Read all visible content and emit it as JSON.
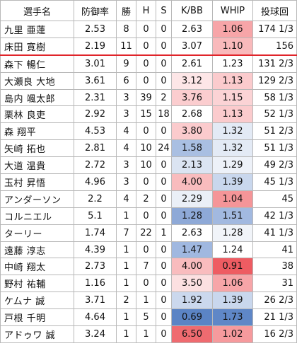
{
  "headers": [
    "選手名",
    "防御率",
    "勝",
    "H",
    "S",
    "K/BB",
    "WHIP",
    "投球回"
  ],
  "rows": [
    {
      "name": "九里 亜蓮",
      "era": "2.53",
      "w": "8",
      "h": "0",
      "s": "0",
      "kbb": "2.63",
      "whip": "1.06",
      "ip": "174 1/3",
      "kbb_bg": "#ffffff",
      "whip_bg": "#f7a5a8"
    },
    {
      "name": "床田 寛樹",
      "era": "2.19",
      "w": "11",
      "h": "0",
      "s": "0",
      "kbb": "3.07",
      "whip": "1.10",
      "ip": "156",
      "kbb_bg": "#ffffff",
      "whip_bg": "#f9b9bb"
    },
    {
      "name": "森下 暢仁",
      "era": "3.01",
      "w": "9",
      "h": "0",
      "s": "0",
      "kbb": "2.61",
      "whip": "1.23",
      "ip": "131 2/3",
      "kbb_bg": "#ffffff",
      "whip_bg": "#ffffff"
    },
    {
      "name": "大瀬良 大地",
      "era": "3.61",
      "h": "0",
      "w": "6",
      "s": "0",
      "kbb": "3.12",
      "whip": "1.13",
      "ip": "129 2/3",
      "kbb_bg": "#fde6e7",
      "whip_bg": "#fbcbcd"
    },
    {
      "name": "島内 颯太郎",
      "era": "2.31",
      "w": "3",
      "h": "39",
      "s": "2",
      "kbb": "3.76",
      "whip": "1.15",
      "ip": "58 1/3",
      "kbb_bg": "#fbcdcf",
      "whip_bg": "#fbd3d5"
    },
    {
      "name": "栗林 良吏",
      "era": "2.92",
      "w": "3",
      "h": "15",
      "s": "18",
      "kbb": "2.68",
      "whip": "1.13",
      "ip": "52 1/3",
      "kbb_bg": "#ffffff",
      "whip_bg": "#fbcbcd"
    },
    {
      "name": "森 翔平",
      "era": "4.53",
      "w": "4",
      "h": "0",
      "s": "0",
      "kbb": "3.80",
      "whip": "1.32",
      "ip": "51 2/3",
      "kbb_bg": "#fbcbcd",
      "whip_bg": "#e3eaf5"
    },
    {
      "name": "矢崎 拓也",
      "era": "2.81",
      "w": "4",
      "h": "10",
      "s": "24",
      "kbb": "1.58",
      "whip": "1.32",
      "ip": "51 1/3",
      "kbb_bg": "#a9bfe2",
      "whip_bg": "#e3eaf5"
    },
    {
      "name": "大道 温貴",
      "era": "2.72",
      "w": "3",
      "h": "10",
      "s": "0",
      "kbb": "2.13",
      "whip": "1.29",
      "ip": "49 2/3",
      "kbb_bg": "#dbe4f2",
      "whip_bg": "#edf1f8"
    },
    {
      "name": "玉村 昇悟",
      "era": "4.96",
      "w": "3",
      "h": "0",
      "s": "0",
      "kbb": "4.00",
      "whip": "1.39",
      "ip": "45 1/3",
      "kbb_bg": "#f9bcbe",
      "whip_bg": "#c9d7ed"
    },
    {
      "name": "アンダーソン",
      "era": "2.2",
      "w": "4",
      "h": "2",
      "s": "0",
      "kbb": "2.29",
      "whip": "1.04",
      "ip": "45",
      "kbb_bg": "#eaeff7",
      "whip_bg": "#f59598"
    },
    {
      "name": "コルニエル",
      "era": "5.1",
      "w": "1",
      "h": "0",
      "s": "0",
      "kbb": "1.28",
      "whip": "1.51",
      "ip": "42 1/3",
      "kbb_bg": "#8ea9d7",
      "whip_bg": "#a2b9e0"
    },
    {
      "name": "ターリー",
      "era": "1.74",
      "w": "7",
      "h": "22",
      "s": "1",
      "kbb": "2.63",
      "whip": "1.28",
      "ip": "41 1/3",
      "kbb_bg": "#ffffff",
      "whip_bg": "#f1f4f9"
    },
    {
      "name": "遠藤 淳志",
      "era": "4.39",
      "w": "1",
      "h": "0",
      "s": "0",
      "kbb": "1.47",
      "whip": "1.24",
      "ip": "41",
      "kbb_bg": "#a0b8e0",
      "whip_bg": "#ffffff"
    },
    {
      "name": "中崎 翔太",
      "era": "2.73",
      "w": "1",
      "h": "7",
      "s": "0",
      "kbb": "4.00",
      "whip": "0.91",
      "ip": "38",
      "kbb_bg": "#f9bcbe",
      "whip_bg": "#ee5c62"
    },
    {
      "name": "野村 祐輔",
      "era": "1.16",
      "w": "1",
      "h": "0",
      "s": "0",
      "kbb": "3.50",
      "whip": "1.06",
      "ip": "31",
      "kbb_bg": "#fce0e1",
      "whip_bg": "#f7a5a8"
    },
    {
      "name": "ケムナ 誠",
      "era": "3.71",
      "w": "2",
      "h": "1",
      "s": "0",
      "kbb": "1.92",
      "whip": "1.39",
      "ip": "26 2/3",
      "kbb_bg": "#cbd8ed",
      "whip_bg": "#c9d7ed"
    },
    {
      "name": "戸根 千明",
      "era": "4.64",
      "w": "1",
      "h": "5",
      "s": "0",
      "kbb": "0.69",
      "whip": "1.73",
      "ip": "21 1/3",
      "kbb_bg": "#5b84c5",
      "whip_bg": "#5f87c7"
    },
    {
      "name": "アドゥワ 誠",
      "era": "3.24",
      "w": "1",
      "h": "1",
      "s": "0",
      "kbb": "6.50",
      "whip": "1.02",
      "ip": "16 2/3",
      "kbb_bg": "#ef6b70",
      "whip_bg": "#f69a9d"
    }
  ],
  "colors": {
    "grid": "#b8b8b8",
    "separator": "#e0242a"
  }
}
